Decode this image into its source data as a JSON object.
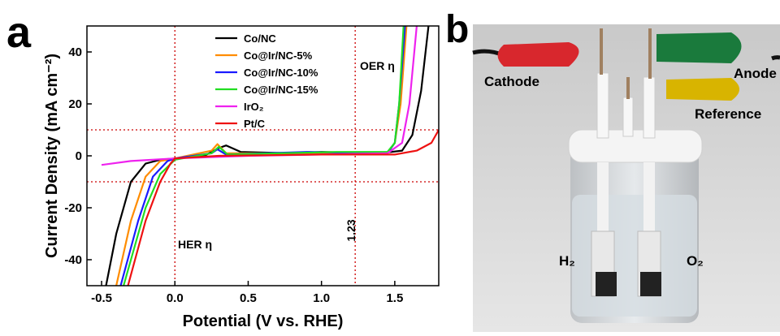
{
  "chart_data": {
    "type": "line",
    "panel_label": "a",
    "x_label": "Potential (V vs. RHE)",
    "y_label": "Current Density (mA cm⁻²)",
    "xlim": [
      -0.6,
      1.8
    ],
    "ylim": [
      -50,
      50
    ],
    "xticks": [
      {
        "value": -0.5,
        "label": "-0.5"
      },
      {
        "value": 0,
        "label": "0.0"
      },
      {
        "value": 0.5,
        "label": "0.5"
      },
      {
        "value": 1,
        "label": "1.0"
      },
      {
        "value": 1.5,
        "label": "1.5"
      }
    ],
    "yticks": [
      -40,
      -20,
      0,
      20,
      40
    ],
    "vlines": [
      0,
      {
        "value": 1.23,
        "label": "1.23"
      }
    ],
    "hlines": [
      10,
      -10
    ],
    "ref_color": "#cc0000",
    "annotations": [
      "OER η",
      "HER η"
    ],
    "series": [
      {
        "name": "Co/NC",
        "color": "#000000",
        "x": [
          -0.47,
          -0.4,
          -0.3,
          -0.2,
          -0.1,
          0,
          0.2,
          0.3,
          0.35,
          0.45,
          0.8,
          1.0,
          1.4,
          1.55,
          1.62,
          1.68,
          1.73
        ],
        "values": [
          -50,
          -30,
          -10,
          -3,
          -1.5,
          -1,
          0,
          3,
          4,
          1.5,
          1,
          1.5,
          1,
          2,
          8,
          25,
          50
        ]
      },
      {
        "name": "Co@Ir/NC-5%",
        "color": "#ff8c00",
        "x": [
          -0.4,
          -0.3,
          -0.2,
          -0.1,
          0,
          0.25,
          0.29,
          0.35,
          0.9,
          1.45,
          1.5,
          1.54,
          1.58
        ],
        "values": [
          -50,
          -25,
          -8,
          -2,
          -1,
          2,
          4.5,
          1,
          1,
          1,
          5,
          20,
          50
        ]
      },
      {
        "name": "Co@Ir/NC-10%",
        "color": "#1a1aff",
        "x": [
          -0.37,
          -0.25,
          -0.15,
          -0.05,
          0,
          0.25,
          0.29,
          0.35,
          0.9,
          1.45,
          1.5,
          1.53,
          1.57
        ],
        "values": [
          -50,
          -25,
          -8,
          -2,
          -1,
          1,
          2.5,
          0.5,
          1.5,
          1,
          5,
          20,
          50
        ]
      },
      {
        "name": "Co@Ir/NC-15%",
        "color": "#22dd22",
        "x": [
          -0.35,
          -0.2,
          -0.1,
          0,
          0.25,
          0.3,
          0.36,
          1.1,
          1.45,
          1.5,
          1.53,
          1.56
        ],
        "values": [
          -50,
          -20,
          -7,
          -1.5,
          1,
          3.5,
          0.5,
          1.5,
          1.5,
          5,
          20,
          50
        ]
      },
      {
        "name": "IrO₂",
        "color": "#ee22ee",
        "x": [
          -0.5,
          -0.3,
          0,
          0.5,
          1.0,
          1.45,
          1.55,
          1.6,
          1.65
        ],
        "values": [
          -3.5,
          -2,
          -1,
          0,
          0.5,
          1,
          5,
          20,
          50
        ]
      },
      {
        "name": "Pt/C",
        "color": "#ee1111",
        "x": [
          -0.32,
          -0.2,
          -0.1,
          -0.03,
          0,
          0.3,
          1.0,
          1.5,
          1.65,
          1.75,
          1.8
        ],
        "values": [
          -50,
          -25,
          -10,
          -3,
          -1,
          0,
          0.5,
          0.5,
          2,
          5,
          10
        ]
      }
    ]
  },
  "photo": {
    "panel_label": "b",
    "labels": [
      "Cathode",
      "Anode",
      "Reference",
      "H₂",
      "O₂"
    ]
  }
}
